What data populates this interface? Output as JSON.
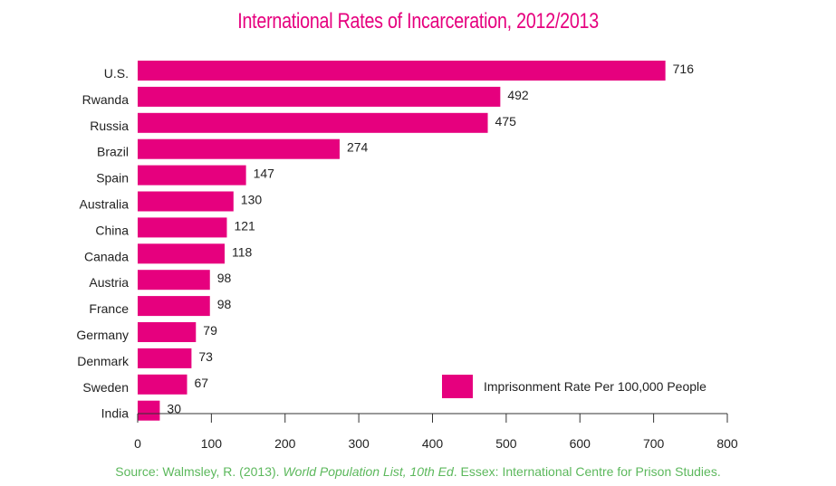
{
  "chart_data": {
    "type": "bar",
    "orientation": "horizontal",
    "title": "International Rates of Incarceration, 2012/2013",
    "categories": [
      "U.S.",
      "Rwanda",
      "Russia",
      "Brazil",
      "Spain",
      "Australia",
      "China",
      "Canada",
      "Austria",
      "France",
      "Germany",
      "Denmark",
      "Sweden",
      "India"
    ],
    "series": [
      {
        "name": "Imprisonment Rate Per 100,000 People",
        "values": [
          716,
          492,
          475,
          274,
          147,
          130,
          121,
          118,
          98,
          98,
          79,
          73,
          67,
          30
        ]
      }
    ],
    "xlim": [
      0,
      800
    ],
    "xticks": [
      0,
      100,
      200,
      300,
      400,
      500,
      600,
      700,
      800
    ],
    "grid": false,
    "legend_position": "bottom-right",
    "bar_color": "#e6007e"
  },
  "source": {
    "label": "Source",
    "prefix": ": Walmsley, R. (2013). ",
    "italic": "World Population List, 10th Ed",
    "suffix": ". Essex: International Centre for Prison Studies."
  }
}
